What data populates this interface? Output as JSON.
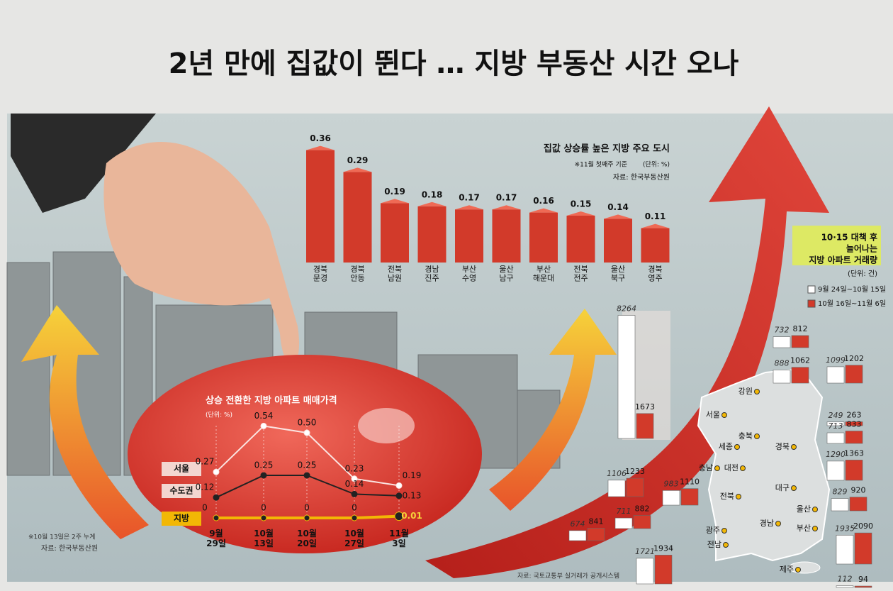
{
  "title": "2년 만에 집값이 뛴다 … 지방 부동산 시간 오나",
  "chart_data": [
    {
      "type": "bar",
      "title": "집값 상승률 높은 지방 주요 도시",
      "note": "※11월 첫째주 기준",
      "unit": "(단위: %)",
      "source": "자료: 한국부동산원",
      "categories": [
        "경북 문경",
        "경북 안동",
        "전북 남원",
        "경남 진주",
        "부산 수영",
        "울산 남구",
        "부산 해운대",
        "전북 전주",
        "울산 북구",
        "경북 영주"
      ],
      "values": [
        0.36,
        0.29,
        0.19,
        0.18,
        0.17,
        0.17,
        0.16,
        0.15,
        0.14,
        0.11
      ],
      "color": "#d23a2a"
    },
    {
      "type": "line",
      "title": "상승 전환한 지방 아파트 매매가격",
      "unit": "(단위: %)",
      "note": "※10월 13일은 2주 누계",
      "source": "자료: 한국부동산원",
      "categories": [
        "9월 29일",
        "10월 13일",
        "10월 20일",
        "10월 27일",
        "11월 3일"
      ],
      "series": [
        {
          "name": "서울",
          "color": "#fbe3e0",
          "values": [
            0.27,
            0.54,
            0.5,
            0.23,
            0.19
          ],
          "value_labels": [
            "0.27",
            "0.54",
            "0.50",
            "0.23",
            "0.19"
          ]
        },
        {
          "name": "수도권",
          "color": "#222222",
          "values": [
            0.12,
            0.25,
            0.25,
            0.14,
            0.13
          ]
        },
        {
          "name": "지방",
          "color": "#f2b705",
          "values": [
            0,
            0,
            0,
            0,
            0.01
          ]
        }
      ]
    },
    {
      "type": "grouped-bar",
      "title": [
        "10·15 대책 후",
        "늘어나는",
        "지방 아파트 거래량"
      ],
      "unit": "(단위: 건)",
      "source": "자료: 국토교통부 실거래가 공개시스템",
      "categories": [
        null,
        null,
        null,
        null,
        null,
        null,
        null,
        null,
        null,
        null,
        null,
        null,
        null,
        null,
        null
      ],
      "series": [
        {
          "name": "9월 24일~10월 15일",
          "color": "#ffffff",
          "values": [
            8264,
            732,
            888,
            1099,
            249,
            713,
            1290,
            1106,
            983,
            829,
            711,
            1935,
            674,
            1721,
            112
          ]
        },
        {
          "name": "10월 16일~11월 6일",
          "color": "#d23a2a",
          "values": [
            1673,
            812,
            1062,
            1202,
            263,
            833,
            1363,
            1233,
            1110,
            920,
            882,
            2090,
            841,
            1934,
            94
          ]
        }
      ]
    }
  ],
  "map": {
    "regions": [
      "강원",
      "서울",
      "충북",
      "세종",
      "경북",
      "충남",
      "대전",
      "대구",
      "전북",
      "울산",
      "광주",
      "경남",
      "부산",
      "전남",
      "제주"
    ]
  }
}
